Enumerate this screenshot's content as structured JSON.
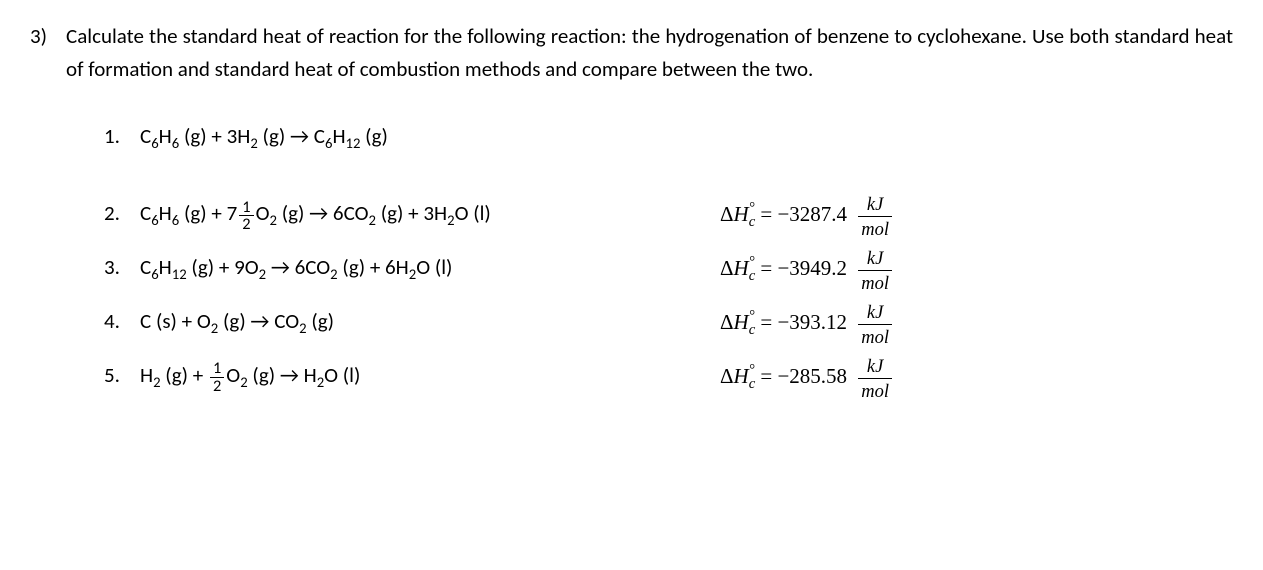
{
  "problem": {
    "number": "3)",
    "text": "Calculate the standard heat of reaction for the following reaction: the hydrogenation of benzene to cyclohexane. Use both standard heat of formation and standard heat of combustion methods and compare between the two."
  },
  "equations": [
    {
      "number": "1.",
      "reactants": [
        {
          "formula": "C",
          "sub": "6",
          "tail": "H",
          "tailsub": "6",
          "phase": "(g)"
        }
      ],
      "plus_r": [
        " + "
      ],
      "reactant2": {
        "coef": "3",
        "formula": "H",
        "sub": "2",
        "phase": "(g)"
      },
      "arrow": " → ",
      "products": [
        {
          "formula": "C",
          "sub": "6",
          "tail": "H",
          "tailsub": "12",
          "phase": "(g)"
        }
      ],
      "has_delta": false
    },
    {
      "number": "2.",
      "r1": "C₆H₆ (g)",
      "frac_num": "1",
      "frac_den": "2",
      "frac_coef": "7",
      "r2_formula": "O",
      "r2_sub": "2",
      "r2_phase": "(g)",
      "arrow": " → ",
      "p1_coef": "6",
      "p1": "CO",
      "p1_sub": "2",
      "p1_phase": "(g)",
      "plus2": " + ",
      "p2_coef": "3",
      "p2": "H",
      "p2_sub": "2",
      "p2_tail": "O",
      "p2_phase": "(l)",
      "delta_value": "−3287.4",
      "unit_num": "kJ",
      "unit_den": "mol"
    },
    {
      "number": "3.",
      "r1": "C₆H₁₂ (g)",
      "r2_coef": "9",
      "r2_formula": "O",
      "r2_sub": "2",
      "arrow": " → ",
      "p1_coef": "6",
      "p1": "CO",
      "p1_sub": "2",
      "p1_phase": "(g)",
      "plus2": " + ",
      "p2_coef": "6",
      "p2": "H",
      "p2_sub": "2",
      "p2_tail": "O",
      "p2_phase": "(l)",
      "delta_value": "−3949.2",
      "unit_num": "kJ",
      "unit_den": "mol"
    },
    {
      "number": "4.",
      "r1": "C (s)",
      "r2_formula": "O",
      "r2_sub": "2",
      "r2_phase": "(g)",
      "arrow": " → ",
      "p1": "CO",
      "p1_sub": "2",
      "p1_phase": "(g)",
      "delta_value": "−393.12",
      "unit_num": "kJ",
      "unit_den": "mol"
    },
    {
      "number": "5.",
      "r1": "H₂ (g)",
      "frac_num": "1",
      "frac_den": "2",
      "r2_formula": "O",
      "r2_sub": "2",
      "r2_phase": "(g)",
      "arrow": " → ",
      "p1": "H",
      "p1_sub": "2",
      "p1_tail": "O",
      "p1_phase": "(l)",
      "delta_value": "−285.58",
      "unit_num": "kJ",
      "unit_den": "mol"
    }
  ],
  "delta_label": {
    "delta": "Δ",
    "H": "H",
    "sub": "c",
    "sup": "°",
    "equals": " = "
  }
}
